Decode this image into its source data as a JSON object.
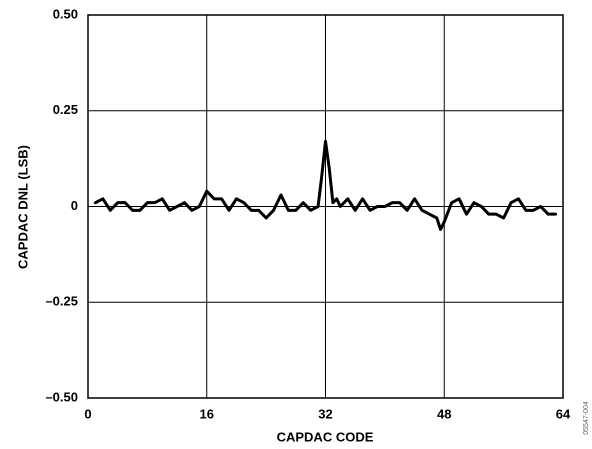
{
  "chart_data": {
    "type": "line",
    "x_label": "CAPDAC CODE",
    "y_label": "CAPDAC DNL (LSB)",
    "figure_code": "05547-004",
    "x": [
      1,
      2,
      3,
      4,
      5,
      6,
      7,
      8,
      9,
      10,
      11,
      12,
      13,
      14,
      15,
      16,
      17,
      18,
      19,
      20,
      21,
      22,
      23,
      24,
      25,
      26,
      27,
      28,
      29,
      30,
      31,
      31.5,
      32,
      32.5,
      33,
      33.5,
      34,
      35,
      36,
      37,
      38,
      39,
      40,
      41,
      42,
      43,
      44,
      45,
      46,
      47,
      47.5,
      48,
      49,
      50,
      51,
      52,
      53,
      54,
      55,
      56,
      57,
      58,
      59,
      60,
      61,
      62,
      63
    ],
    "series": [
      {
        "color": "#000000",
        "values": [
          0.01,
          0.02,
          -0.01,
          0.01,
          0.01,
          -0.01,
          -0.01,
          0.01,
          0.01,
          0.02,
          -0.01,
          0,
          0.01,
          -0.01,
          0,
          0.04,
          0.02,
          0.02,
          -0.01,
          0.02,
          0.01,
          -0.01,
          -0.01,
          -0.03,
          -0.01,
          0.03,
          -0.01,
          -0.01,
          0.01,
          -0.01,
          0,
          0.08,
          0.17,
          0.1,
          0.01,
          0.02,
          0,
          0.02,
          -0.01,
          0.02,
          -0.01,
          0,
          0,
          0.01,
          0.01,
          -0.01,
          0.02,
          -0.01,
          -0.02,
          -0.03,
          -0.06,
          -0.04,
          0.01,
          0.02,
          -0.02,
          0.01,
          0,
          -0.02,
          -0.02,
          -0.03,
          0.01,
          0.02,
          -0.01,
          -0.01,
          0,
          -0.02,
          -0.02
        ]
      }
    ],
    "xlim": [
      0,
      64
    ],
    "xticks": [
      0,
      16,
      32,
      48,
      64
    ],
    "ylim": [
      -0.5,
      0.5
    ],
    "yticks": [
      {
        "value": -0.5,
        "label": "–0.50"
      },
      {
        "value": -0.25,
        "label": "–0.25"
      },
      0,
      0.25,
      {
        "value": 0.5,
        "label": "0.50"
      }
    ],
    "grid": true
  }
}
